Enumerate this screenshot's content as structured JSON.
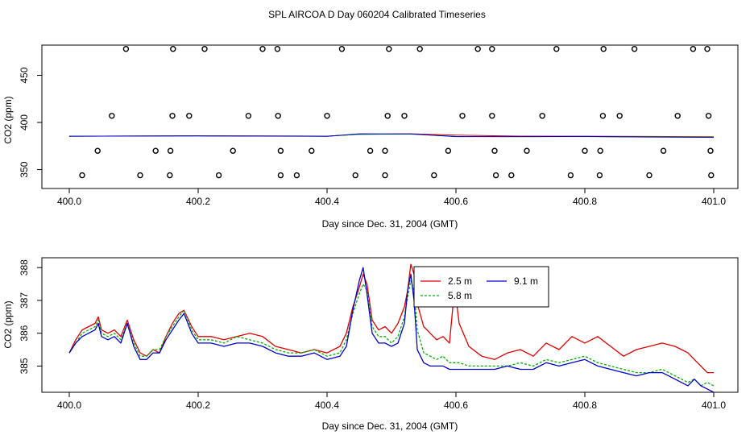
{
  "title": "SPL AIRCOA D  Day 060204  Calibrated Timeseries",
  "colors": {
    "red": "#e00000",
    "green": "#00b000",
    "blue": "#0000d0",
    "axis": "#000000"
  },
  "chart_data": [
    {
      "type": "line",
      "name": "top",
      "xlabel": "Day since Dec. 31, 2004 (GMT)",
      "ylabel": "CO2 (ppm)",
      "xlim": [
        400.0,
        401.0
      ],
      "ylim": [
        330,
        482
      ],
      "xticks": [
        400.0,
        400.2,
        400.4,
        400.6,
        400.8,
        401.0
      ],
      "xtick_labels": [
        "400.0",
        "400.2",
        "400.4",
        "400.6",
        "400.8",
        "401.0"
      ],
      "yticks": [
        350,
        400,
        450
      ],
      "ytick_labels": [
        "350",
        "400",
        "450"
      ],
      "series": [
        {
          "name": "2.5 m",
          "color": "red",
          "x": [
            400.0,
            400.2,
            400.4,
            400.45,
            400.53,
            400.6,
            400.7,
            400.8,
            400.9,
            401.0
          ],
          "y": [
            385.4,
            385.9,
            385.5,
            387.5,
            388.0,
            386.5,
            385.5,
            385.4,
            385.2,
            384.8
          ]
        },
        {
          "name": "5.8 m",
          "color": "green",
          "x": [
            400.0,
            400.2,
            400.4,
            400.45,
            400.53,
            400.6,
            400.7,
            400.8,
            400.9,
            401.0
          ],
          "y": [
            385.4,
            385.8,
            385.4,
            387.4,
            387.6,
            385.2,
            385.0,
            385.0,
            384.8,
            384.4
          ]
        },
        {
          "name": "9.1 m",
          "color": "blue",
          "x": [
            400.0,
            400.2,
            400.4,
            400.45,
            400.53,
            400.6,
            400.7,
            400.8,
            400.9,
            401.0
          ],
          "y": [
            385.4,
            385.7,
            385.3,
            388.0,
            387.8,
            385.0,
            385.0,
            385.2,
            384.6,
            384.2
          ]
        }
      ],
      "points": [
        {
          "x": 400.088,
          "y": 478
        },
        {
          "x": 400.161,
          "y": 478
        },
        {
          "x": 400.21,
          "y": 478
        },
        {
          "x": 400.3,
          "y": 478
        },
        {
          "x": 400.323,
          "y": 478
        },
        {
          "x": 400.423,
          "y": 478
        },
        {
          "x": 400.496,
          "y": 478
        },
        {
          "x": 400.544,
          "y": 478
        },
        {
          "x": 400.634,
          "y": 478
        },
        {
          "x": 400.656,
          "y": 478
        },
        {
          "x": 400.756,
          "y": 478
        },
        {
          "x": 400.829,
          "y": 478
        },
        {
          "x": 400.877,
          "y": 478
        },
        {
          "x": 400.968,
          "y": 478
        },
        {
          "x": 400.99,
          "y": 478
        },
        {
          "x": 400.066,
          "y": 407
        },
        {
          "x": 400.16,
          "y": 407
        },
        {
          "x": 400.186,
          "y": 407
        },
        {
          "x": 400.278,
          "y": 407
        },
        {
          "x": 400.324,
          "y": 407
        },
        {
          "x": 400.4,
          "y": 407
        },
        {
          "x": 400.494,
          "y": 407
        },
        {
          "x": 400.52,
          "y": 407
        },
        {
          "x": 400.61,
          "y": 407
        },
        {
          "x": 400.656,
          "y": 407
        },
        {
          "x": 400.734,
          "y": 407
        },
        {
          "x": 400.828,
          "y": 407
        },
        {
          "x": 400.854,
          "y": 407
        },
        {
          "x": 400.944,
          "y": 407
        },
        {
          "x": 400.992,
          "y": 407
        },
        {
          "x": 400.044,
          "y": 370
        },
        {
          "x": 400.134,
          "y": 370
        },
        {
          "x": 400.157,
          "y": 370
        },
        {
          "x": 400.254,
          "y": 370
        },
        {
          "x": 400.328,
          "y": 370
        },
        {
          "x": 400.376,
          "y": 370
        },
        {
          "x": 400.467,
          "y": 370
        },
        {
          "x": 400.49,
          "y": 370
        },
        {
          "x": 400.588,
          "y": 370
        },
        {
          "x": 400.66,
          "y": 370
        },
        {
          "x": 400.71,
          "y": 370
        },
        {
          "x": 400.8,
          "y": 370
        },
        {
          "x": 400.824,
          "y": 370
        },
        {
          "x": 400.922,
          "y": 370
        },
        {
          "x": 400.995,
          "y": 370
        },
        {
          "x": 400.02,
          "y": 344
        },
        {
          "x": 400.11,
          "y": 344
        },
        {
          "x": 400.156,
          "y": 344
        },
        {
          "x": 400.232,
          "y": 344
        },
        {
          "x": 400.328,
          "y": 344
        },
        {
          "x": 400.353,
          "y": 344
        },
        {
          "x": 400.444,
          "y": 344
        },
        {
          "x": 400.49,
          "y": 344
        },
        {
          "x": 400.566,
          "y": 344
        },
        {
          "x": 400.662,
          "y": 344
        },
        {
          "x": 400.686,
          "y": 344
        },
        {
          "x": 400.778,
          "y": 344
        },
        {
          "x": 400.823,
          "y": 344
        },
        {
          "x": 400.9,
          "y": 344
        },
        {
          "x": 400.996,
          "y": 344
        }
      ]
    },
    {
      "type": "line",
      "name": "bottom",
      "xlabel": "Day since Dec. 31, 2004 (GMT)",
      "ylabel": "CO2 (ppm)",
      "xlim": [
        400.0,
        401.0
      ],
      "ylim": [
        384.2,
        388.3
      ],
      "xticks": [
        400.0,
        400.2,
        400.4,
        400.6,
        400.8,
        401.0
      ],
      "xtick_labels": [
        "400.0",
        "400.2",
        "400.4",
        "400.6",
        "400.8",
        "401.0"
      ],
      "yticks": [
        385,
        386,
        387,
        388
      ],
      "ytick_labels": [
        "385",
        "386",
        "387",
        "388"
      ],
      "legend": {
        "position": "top-right",
        "entries": [
          "2.5 m",
          "5.8 m",
          "9.1 m"
        ]
      },
      "x": [
        400.0,
        400.01,
        400.02,
        400.03,
        400.04,
        400.045,
        400.05,
        400.06,
        400.07,
        400.08,
        400.09,
        400.1,
        400.11,
        400.12,
        400.13,
        400.14,
        400.15,
        400.16,
        400.17,
        400.178,
        400.19,
        400.2,
        400.22,
        400.24,
        400.26,
        400.28,
        400.3,
        400.32,
        400.34,
        400.36,
        400.38,
        400.4,
        400.42,
        400.43,
        400.44,
        400.45,
        400.456,
        400.462,
        400.47,
        400.48,
        400.49,
        400.5,
        400.51,
        400.52,
        400.525,
        400.53,
        400.535,
        400.54,
        400.55,
        400.56,
        400.57,
        400.58,
        400.59,
        400.598,
        400.605,
        400.62,
        400.64,
        400.66,
        400.68,
        400.7,
        400.72,
        400.74,
        400.76,
        400.78,
        400.8,
        400.82,
        400.84,
        400.86,
        400.88,
        400.9,
        400.92,
        400.94,
        400.95,
        400.96,
        400.97,
        400.98,
        400.99,
        401.0
      ],
      "series": [
        {
          "name": "2.5 m",
          "color": "red",
          "values": [
            385.4,
            385.8,
            386.1,
            386.2,
            386.3,
            386.5,
            386.1,
            386.0,
            386.1,
            385.9,
            386.4,
            385.8,
            385.4,
            385.3,
            385.5,
            385.4,
            385.9,
            386.3,
            386.6,
            386.7,
            386.2,
            385.9,
            385.9,
            385.8,
            385.9,
            386.0,
            385.9,
            385.6,
            385.5,
            385.4,
            385.5,
            385.4,
            385.6,
            386.0,
            386.8,
            387.4,
            387.8,
            387.5,
            386.4,
            386.1,
            386.2,
            386.0,
            386.3,
            386.8,
            387.3,
            388.1,
            387.8,
            386.9,
            386.2,
            386.0,
            385.8,
            385.9,
            385.7,
            387.4,
            386.3,
            385.6,
            385.3,
            385.2,
            385.4,
            385.5,
            385.3,
            385.7,
            385.5,
            385.9,
            385.7,
            385.9,
            385.6,
            385.3,
            385.5,
            385.6,
            385.7,
            385.6,
            385.5,
            385.4,
            385.2,
            385.0,
            384.8,
            384.8
          ]
        },
        {
          "name": "5.8 m",
          "color": "green",
          "values": [
            385.4,
            385.7,
            386.0,
            386.1,
            386.2,
            386.4,
            386.0,
            385.9,
            386.0,
            385.8,
            386.3,
            385.7,
            385.3,
            385.3,
            385.5,
            385.5,
            385.9,
            386.2,
            386.5,
            386.7,
            386.1,
            385.8,
            385.8,
            385.7,
            385.9,
            385.8,
            385.7,
            385.5,
            385.4,
            385.4,
            385.5,
            385.3,
            385.4,
            385.8,
            386.6,
            387.2,
            387.5,
            387.3,
            386.2,
            385.9,
            385.9,
            385.7,
            385.9,
            386.5,
            387.1,
            387.6,
            387.3,
            386.1,
            385.4,
            385.3,
            385.2,
            385.3,
            385.1,
            385.1,
            385.1,
            385.0,
            385.0,
            385.0,
            385.0,
            385.1,
            385.0,
            385.2,
            385.1,
            385.2,
            385.3,
            385.1,
            385.0,
            384.9,
            384.8,
            384.8,
            384.9,
            384.7,
            384.6,
            384.5,
            384.6,
            384.4,
            384.5,
            384.4
          ]
        },
        {
          "name": "9.1 m",
          "color": "blue",
          "values": [
            385.4,
            385.7,
            385.9,
            386.0,
            386.1,
            386.3,
            385.9,
            385.8,
            385.9,
            385.7,
            386.3,
            385.6,
            385.2,
            385.2,
            385.4,
            385.4,
            385.8,
            386.1,
            386.4,
            386.6,
            386.0,
            385.7,
            385.7,
            385.6,
            385.7,
            385.7,
            385.6,
            385.4,
            385.3,
            385.3,
            385.4,
            385.2,
            385.3,
            385.6,
            386.7,
            387.6,
            388.0,
            387.2,
            386.0,
            385.7,
            385.7,
            385.6,
            385.7,
            386.3,
            387.3,
            387.8,
            387.0,
            385.5,
            385.1,
            385.0,
            385.0,
            385.0,
            384.9,
            384.9,
            384.9,
            384.9,
            384.9,
            384.9,
            385.0,
            384.9,
            384.9,
            385.1,
            385.0,
            385.1,
            385.2,
            385.0,
            384.9,
            384.8,
            384.7,
            384.8,
            384.8,
            384.6,
            384.5,
            384.4,
            384.6,
            384.4,
            384.3,
            384.2
          ]
        }
      ]
    }
  ]
}
